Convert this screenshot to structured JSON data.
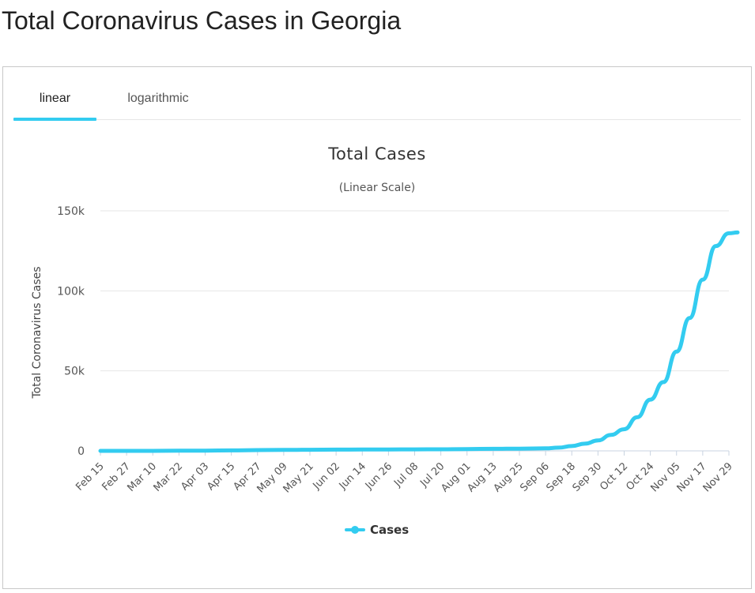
{
  "page": {
    "title": "Total Coronavirus Cases in Georgia"
  },
  "tabs": [
    {
      "label": "linear",
      "active": true
    },
    {
      "label": "logarithmic",
      "active": false
    }
  ],
  "chart_data": {
    "type": "line",
    "title": "Total Cases",
    "subtitle": "(Linear Scale)",
    "ylabel": "Total Coronavirus Cases",
    "xlabel": "",
    "ylim": [
      0,
      150000
    ],
    "yticks": [
      0,
      50000,
      100000,
      150000
    ],
    "ytick_labels": [
      "0",
      "50k",
      "100k",
      "150k"
    ],
    "xtick_labels": [
      "Feb 15",
      "Feb 27",
      "Mar 10",
      "Mar 22",
      "Apr 03",
      "Apr 15",
      "Apr 27",
      "May 09",
      "May 21",
      "Jun 02",
      "Jun 14",
      "Jun 26",
      "Jul 08",
      "Jul 20",
      "Aug 01",
      "Aug 13",
      "Aug 25",
      "Sep 06",
      "Sep 18",
      "Sep 30",
      "Oct 12",
      "Oct 24",
      "Nov 05",
      "Nov 17",
      "Nov 29"
    ],
    "x": [
      "Feb 15",
      "Feb 27",
      "Mar 10",
      "Mar 22",
      "Apr 03",
      "Apr 15",
      "Apr 27",
      "May 09",
      "May 21",
      "Jun 02",
      "Jun 14",
      "Jun 26",
      "Jul 08",
      "Jul 20",
      "Aug 01",
      "Aug 13",
      "Aug 25",
      "Sep 06",
      "Sep 12",
      "Sep 18",
      "Sep 24",
      "Sep 30",
      "Oct 06",
      "Oct 12",
      "Oct 18",
      "Oct 24",
      "Oct 30",
      "Nov 05",
      "Nov 11",
      "Nov 17",
      "Nov 23",
      "Nov 29",
      "Dec 03"
    ],
    "series": [
      {
        "name": "Cases",
        "color": "#33ccf0",
        "values": [
          0,
          1,
          15,
          100,
          150,
          300,
          500,
          600,
          700,
          800,
          850,
          900,
          950,
          1000,
          1150,
          1300,
          1400,
          1600,
          2000,
          3000,
          4500,
          6500,
          10000,
          13500,
          21000,
          32000,
          43000,
          62000,
          83000,
          107000,
          128000,
          136000,
          136500
        ]
      }
    ],
    "legend": "bottom-center",
    "grid": true
  }
}
